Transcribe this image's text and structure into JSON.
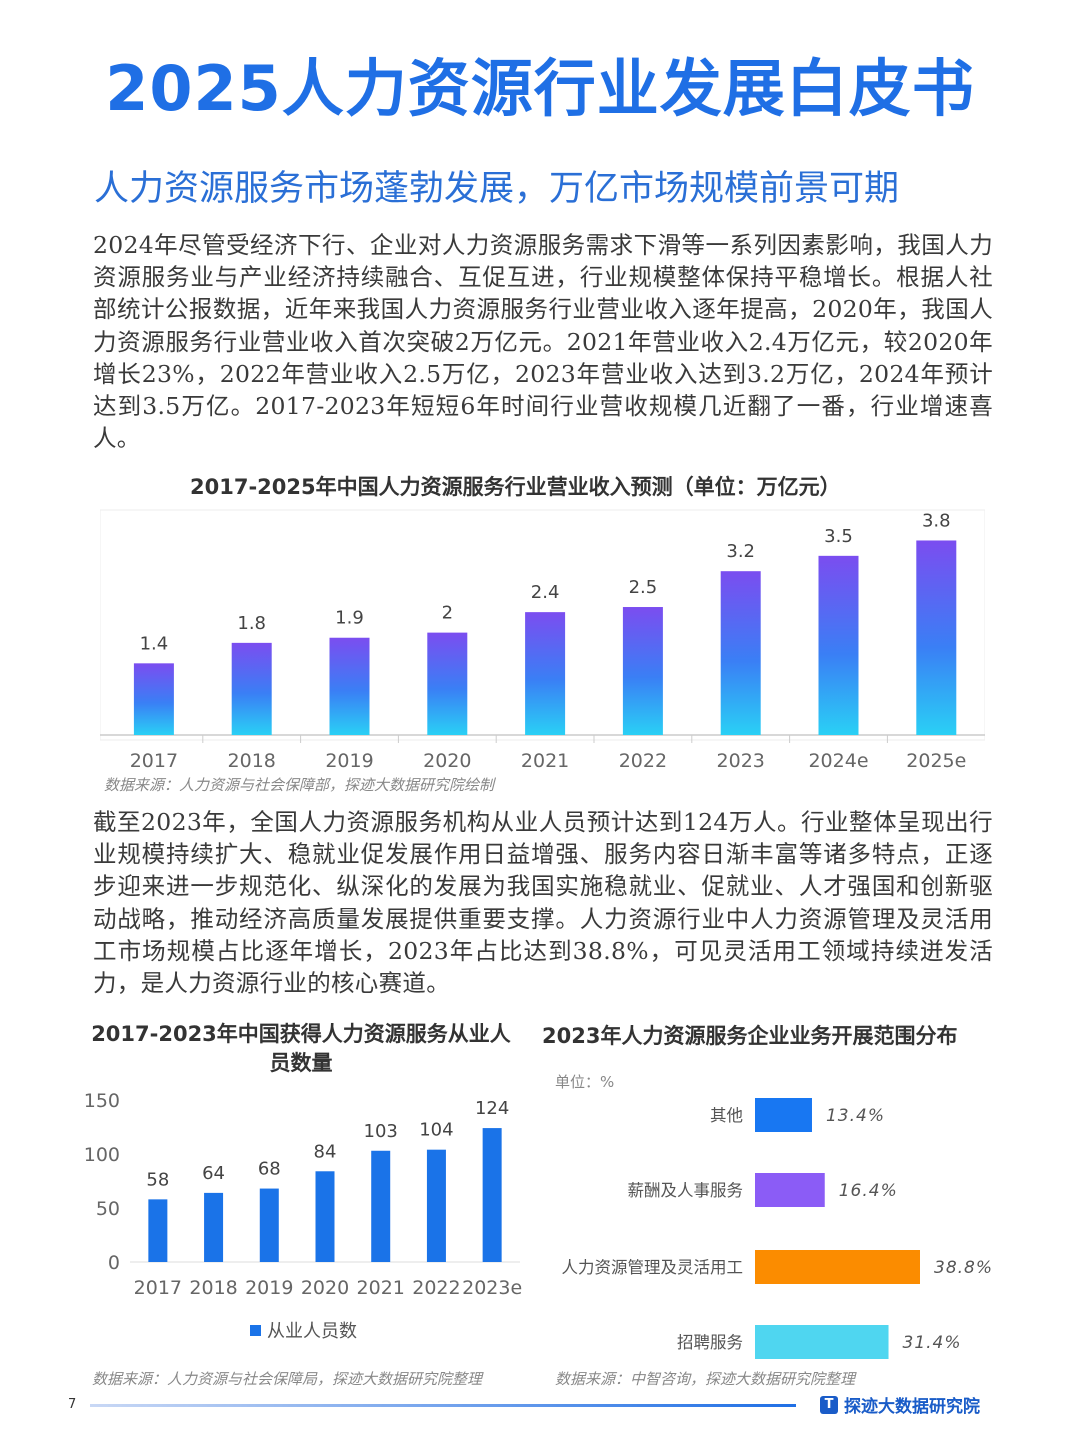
{
  "title": "2025人力资源行业发展白皮书",
  "subtitle": "人力资源服务市场蓬勃发展，万亿市场规模前景可期",
  "paragraph1": "2024年尽管受经济下行、企业对人力资源服务需求下滑等一系列因素影响，我国人力资源服务业与产业经济持续融合、互促互进，行业规模整体保持平稳增长。根据人社部统计公报数据，近年来我国人力资源服务行业营业收入逐年提高，2020年，我国人力资源服务行业营业收入首次突破2万亿元。2021年营业收入2.4万亿元，较2020年增长23%，2022年营业收入2.5万亿，2023年营业收入达到3.2万亿，2024年预计达到3.5万亿。2017-2023年短短6年时间行业营收规模几近翻了一番，行业增速喜人。",
  "paragraph2": "截至2023年，全国人力资源服务机构从业人员预计达到124万人。行业整体呈现出行业规模持续扩大、稳就业促发展作用日益增强、服务内容日渐丰富等诸多特点，正逐步迎来进一步规范化、纵深化的发展为我国实施稳就业、促就业、人才强国和创新驱动战略，推动经济高质量发展提供重要支撑。人力资源行业中人力资源管理及灵活用工市场规模占比逐年增长，2023年占比达到38.8%，可见灵活用工领域持续迸发活力，是人力资源行业的核心赛道。",
  "chart_data": [
    {
      "type": "bar",
      "title": "2017-2025年中国人力资源服务行业营业收入预测（单位：万亿元）",
      "categories": [
        "2017",
        "2018",
        "2019",
        "2020",
        "2021",
        "2022",
        "2023",
        "2024e",
        "2025e"
      ],
      "values": [
        1.4,
        1.8,
        1.9,
        2,
        2.4,
        2.5,
        3.2,
        3.5,
        3.8
      ],
      "labels": [
        "1.4",
        "1.8",
        "1.9",
        "2",
        "2.4",
        "2.5",
        "3.2",
        "3.5",
        "3.8"
      ],
      "ylim": [
        0,
        4.2
      ],
      "grid": false,
      "source": "数据来源：人力资源与社会保障部，探迹大数据研究院绘制"
    },
    {
      "type": "bar",
      "title": "2017-2023年中国获得人力资源服务从业人员数量",
      "categories": [
        "2017",
        "2018",
        "2019",
        "2020",
        "2021",
        "2022",
        "2023e"
      ],
      "values": [
        58,
        64,
        68,
        84,
        103,
        104,
        124
      ],
      "yticks": [
        "0",
        "50",
        "100",
        "150"
      ],
      "ylim": [
        0,
        150
      ],
      "legend": "从业人员数",
      "legend_position": "bottom",
      "source": "数据来源：人力资源与社会保障局，探迹大数据研究院整理"
    },
    {
      "type": "bar",
      "orientation": "horizontal",
      "title": "2023年人力资源服务企业业务开展范围分布",
      "unit": "单位：%",
      "categories": [
        "其他",
        "薪酬及人事服务",
        "人力资源管理及灵活用工",
        "招聘服务"
      ],
      "values": [
        13.4,
        16.4,
        38.8,
        31.4
      ],
      "labels": [
        "13.4%",
        "16.4%",
        "38.8%",
        "31.4%"
      ],
      "colors": [
        "#1877f2",
        "#8b5cf6",
        "#fb8c00",
        "#4fd6f0"
      ],
      "xlim": [
        0,
        40
      ],
      "source": "数据来源：中智咨询，探迹大数据研究院整理"
    }
  ],
  "page_number": "7",
  "brand": "探迹大数据研究院",
  "colors": {
    "title": "#1f6fe5",
    "bar_blue": "#1a73e8",
    "gradient_top": "#7b4df0",
    "gradient_bottom": "#2ad0f5"
  }
}
